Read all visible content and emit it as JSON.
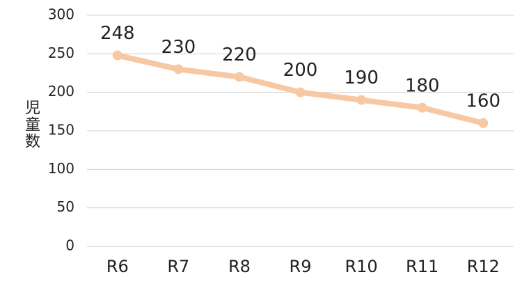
{
  "chart_data": {
    "type": "line",
    "y_label": "児童数",
    "categories": [
      "R6",
      "R7",
      "R8",
      "R9",
      "R10",
      "R11",
      "R12"
    ],
    "values": [
      248,
      230,
      220,
      200,
      190,
      180,
      160
    ],
    "color": "#f7c8a4",
    "ylim": [
      0,
      300
    ],
    "yticks": [
      0,
      50,
      100,
      150,
      200,
      250,
      300
    ],
    "grid": true
  }
}
